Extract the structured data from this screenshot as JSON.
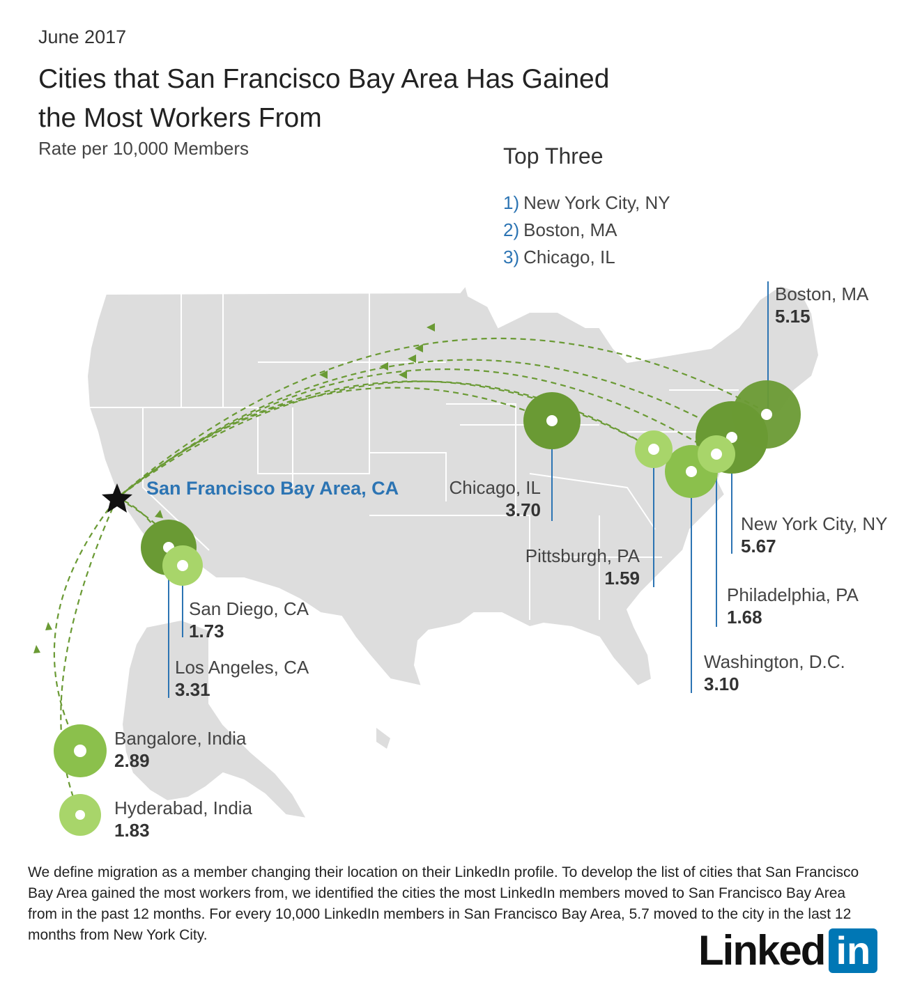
{
  "header": {
    "date": "June 2017",
    "title": "Cities that San Francisco Bay Area Has Gained the Most Workers From",
    "subtitle": "Rate per 10,000 Members"
  },
  "top_three": {
    "title": "Top Three",
    "items": [
      {
        "rank": "1)",
        "name": "New York City, NY"
      },
      {
        "rank": "2)",
        "name": "Boston, MA"
      },
      {
        "rank": "3)",
        "name": "Chicago, IL"
      }
    ]
  },
  "origin": {
    "name": "San Francisco Bay Area, CA",
    "icon": "star-icon"
  },
  "cities": [
    {
      "name": "Boston, MA",
      "value": "5.15"
    },
    {
      "name": "New York City, NY",
      "value": "5.67"
    },
    {
      "name": "Chicago, IL",
      "value": "3.70"
    },
    {
      "name": "Pittsburgh, PA",
      "value": "1.59"
    },
    {
      "name": "Philadelphia, PA",
      "value": "1.68"
    },
    {
      "name": "Washington, D.C.",
      "value": "3.10"
    },
    {
      "name": "San Diego, CA",
      "value": "1.73"
    },
    {
      "name": "Los Angeles, CA",
      "value": "3.31"
    },
    {
      "name": "Bangalore, India",
      "value": "2.89"
    },
    {
      "name": "Hyderabad, India",
      "value": "1.83"
    }
  ],
  "colors": {
    "map_fill": "#dddddd",
    "map_border": "#ffffff",
    "bubble_dark": "#6a9a34",
    "bubble_mid": "#8bc04c",
    "bubble_light": "#a8d56a",
    "arrow": "#6a9a34",
    "leader_line": "#2c74b3",
    "accent_blue": "#2c74b3"
  },
  "footnote": "We define migration as a member changing their location on their LinkedIn profile. To develop the list of cities that San Francisco Bay Area gained the most workers from, we identified the cities the most LinkedIn members moved to San Francisco Bay Area from in the past 12 months. For every 10,000 LinkedIn members in San Francisco Bay Area, 5.7 moved to the city in the last 12 months from New York City.",
  "logo": {
    "text": "Linked",
    "box": "in"
  }
}
